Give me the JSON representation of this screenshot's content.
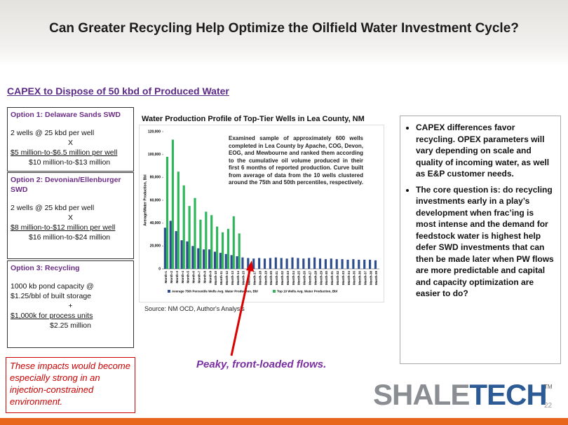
{
  "header": {
    "title": "Can Greater Recycling Help Optimize the Oilfield Water Investment Cycle?"
  },
  "subtitle": "CAPEX to Dispose of 50 kbd of Produced Water",
  "options": [
    {
      "title": "Option 1: Delaware Sands SWD",
      "lines": [
        "2 wells  @ 25 kbd per well",
        "X",
        "$5 million-to-$6.5  million  per well",
        "$10 million-to-$13 million"
      ]
    },
    {
      "title": "Option 2: Devonian/Ellenburger SWD",
      "lines": [
        "2 wells  @ 25 kbd per well",
        "X",
        "$8 million-to-$12  million  per well",
        "$16 million-to-$24 million"
      ]
    },
    {
      "title": "Option 3: Recycling",
      "lines": [
        "1000 kb pond capacity @",
        "$1.25/bbl of  built storage",
        "+",
        "$1,000k for process units",
        "$2.25 million"
      ]
    }
  ],
  "impact_note": "These impacts would become especially strong in an injection-constrained environment.",
  "chart_title": "Water Production Profile of Top-Tier Wells in Lea County, NM",
  "chart_note": "Examined sample of approximately 600 wells completed in Lea County by Apache, COG, Devon, EOG, and Mewbourne and ranked them according to the cumulative oil volume produced in their first 6 months of reported production. Curve built from average of data from the 10 wells clustered around the 75th and 50th percentiles, respectively.",
  "chart_source": "Source: NM OCD, Author's Analysis",
  "chart": {
    "type": "bar",
    "y_label": "Average/Water Production, Bbl",
    "categories": [
      "Month-1",
      "Month-2",
      "Month-3",
      "Month-4",
      "Month-5",
      "Month-6",
      "Month-7",
      "Month-8",
      "Month-9",
      "Month-10",
      "Month-11",
      "Month-12",
      "Month-13",
      "Month-14",
      "Month-15",
      "Month-16",
      "Month-17",
      "Month-18",
      "Month-19",
      "Month-20",
      "Month-21",
      "Month-22",
      "Month-23",
      "Month-24",
      "Month-25",
      "Month-26",
      "Month-27",
      "Month-28",
      "Month-29",
      "Month-30",
      "Month-31",
      "Month-32",
      "Month-33",
      "Month-34",
      "Month-35",
      "Month-36",
      "Month-37",
      "Month-38",
      "Month-39"
    ],
    "series": [
      {
        "name": "Average 75th Percentile Wells Avg. Water Production, Bbl",
        "color": "#2e4d8f",
        "values": [
          36000,
          42000,
          33000,
          25000,
          24000,
          20000,
          18000,
          17000,
          17000,
          15000,
          14000,
          13000,
          12000,
          11000,
          10000,
          9500,
          9000,
          9500,
          9000,
          9500,
          10000,
          9500,
          9000,
          10000,
          9500,
          9000,
          9500,
          10000,
          9000,
          8500,
          9000,
          8500,
          8500,
          8000,
          8500,
          8000,
          8000,
          8000,
          7500
        ]
      },
      {
        "name": "Top 10 Wells Avg. Water Production, Bbl",
        "color": "#2fb55a",
        "values": [
          98000,
          113000,
          85000,
          73000,
          55000,
          62000,
          43000,
          50000,
          47000,
          37000,
          32000,
          35000,
          46000,
          31000,
          null,
          null,
          null,
          null,
          null,
          null,
          null,
          null,
          null,
          null,
          null,
          null,
          null,
          null,
          null,
          null,
          null,
          null,
          null,
          null,
          null,
          null,
          null,
          null,
          null
        ]
      }
    ],
    "ylim": [
      0,
      120000
    ],
    "yticks": [
      0,
      {
        "value": 20000,
        "label": "20,000"
      },
      {
        "value": 40000,
        "label": "40,000"
      },
      {
        "value": 60000,
        "label": "60,000"
      },
      {
        "value": 80000,
        "label": "80,000"
      },
      {
        "value": 100000,
        "label": "100,000"
      },
      {
        "value": 120000,
        "label": "120,000"
      }
    ]
  },
  "callout": "Peaky, front-loaded flows.",
  "bullets": [
    "CAPEX differences favor recycling. OPEX parameters will vary depending on scale and quality of incoming water, as well as E&P customer needs.",
    "The core question is:  do recycling investments early in a play’s development when frac’ing is most intense and the demand for feedstock water is highest help defer SWD investments that can then be made later when PW flows are more predictable and capital and capacity optimization are easier to do?"
  ],
  "logo": {
    "a": "SHALE",
    "b": "TECH",
    "tm": "TM"
  },
  "page_number": "22"
}
